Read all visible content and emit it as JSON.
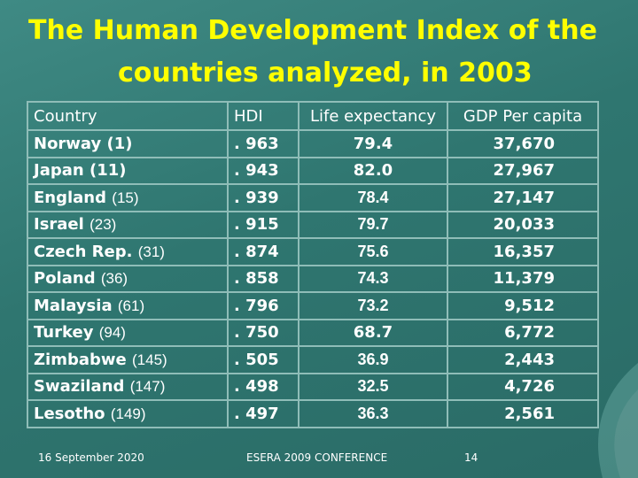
{
  "slide": {
    "title_line1": "The Human Development Index of the",
    "title_line2": "countries analyzed, in 2003"
  },
  "table": {
    "headers": [
      "Country",
      "HDI",
      "Life expectancy",
      "GDP Per capita"
    ],
    "rows": [
      {
        "country": "Norway",
        "rank": "(1)",
        "hdi": ". 963",
        "life": "79.4",
        "gdp": "37,670"
      },
      {
        "country": "Japan",
        "rank": "(11)",
        "hdi": ". 943",
        "life": "82.0",
        "gdp": "27,967"
      },
      {
        "country": "England",
        "rank": "(15)",
        "hdi": ". 939",
        "life": "78.4",
        "gdp": "27,147"
      },
      {
        "country": "Israel",
        "rank": "(23)",
        "hdi": ". 915",
        "life": "79.7",
        "gdp": "20,033"
      },
      {
        "country": "Czech Rep.",
        "rank": "(31)",
        "hdi": ". 874",
        "life": "75.6",
        "gdp": "16,357"
      },
      {
        "country": "Poland",
        "rank": "(36)",
        "hdi": ". 858",
        "life": "74.3",
        "gdp": "11,379"
      },
      {
        "country": "Malaysia",
        "rank": "(61)",
        "hdi": ". 796",
        "life": "73.2",
        "gdp": "9,512"
      },
      {
        "country": "Turkey",
        "rank": "(94)",
        "hdi": ". 750",
        "life": "68.7",
        "gdp": "6,772"
      },
      {
        "country": "Zimbabwe",
        "rank": "(145)",
        "hdi": ". 505",
        "life": "36.9",
        "gdp": "2,443"
      },
      {
        "country": "Swaziland",
        "rank": "(147)",
        "hdi": ". 498",
        "life": "32.5",
        "gdp": "4,726"
      },
      {
        "country": "Lesotho",
        "rank": "(149)",
        "hdi": ". 497",
        "life": "36.3",
        "gdp": "2,561"
      }
    ]
  },
  "footer": {
    "date": "16 September 2020",
    "conference": "ESERA 2009 CONFERENCE",
    "page": "14"
  },
  "colors": {
    "background": "#2f7670",
    "title": "#ffff00",
    "text": "#ffffff",
    "grid": "#8fbdb8"
  }
}
